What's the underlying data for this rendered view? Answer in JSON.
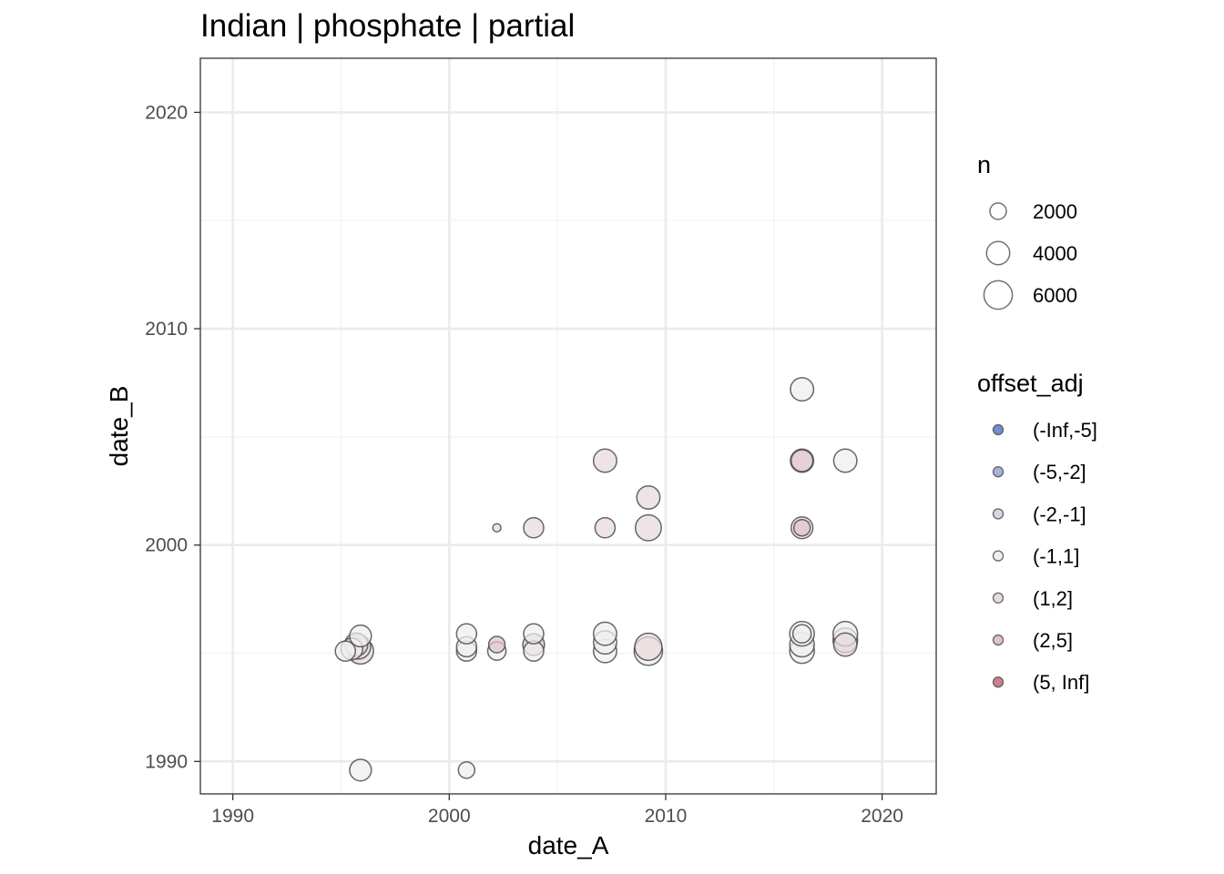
{
  "chart_data": {
    "type": "scatter",
    "title": "Indian | phosphate | partial",
    "xlabel": "date_A",
    "ylabel": "date_B",
    "xlim": [
      1988.5,
      2022.5
    ],
    "ylim": [
      1988.5,
      2022.5
    ],
    "x_ticks": [
      1990,
      2000,
      2010,
      2020
    ],
    "y_ticks": [
      1990,
      2000,
      2010,
      2020
    ],
    "x_tick_labels": [
      "1990",
      "2000",
      "2010",
      "2020"
    ],
    "y_tick_labels": [
      "1990",
      "2000",
      "2010",
      "2020"
    ],
    "grid": true,
    "size_legend": {
      "title": "n",
      "entries": [
        {
          "label": "2000",
          "n": 2000
        },
        {
          "label": "4000",
          "n": 4000
        },
        {
          "label": "6000",
          "n": 6000
        }
      ]
    },
    "color_legend": {
      "title": "offset_adj",
      "entries": [
        {
          "label": "(-Inf,-5]",
          "color": "#6f8fd1"
        },
        {
          "label": "(-5,-2]",
          "color": "#a8b3d8"
        },
        {
          "label": "(-2,-1]",
          "color": "#d5d8e6"
        },
        {
          "label": "(-1,1]",
          "color": "#eeeeee"
        },
        {
          "label": "(1,2]",
          "color": "#e8dadd"
        },
        {
          "label": "(2,5]",
          "color": "#dfc2c9"
        },
        {
          "label": "(5, Inf]",
          "color": "#c9808f"
        }
      ]
    },
    "points": [
      {
        "x": 1995.2,
        "y": 1995.1,
        "n": 3000,
        "group": "(-1,1]"
      },
      {
        "x": 1995.5,
        "y": 1995.2,
        "n": 3500,
        "group": "(-1,1]"
      },
      {
        "x": 1995.7,
        "y": 1995.4,
        "n": 4000,
        "group": "(1,2]"
      },
      {
        "x": 1995.8,
        "y": 1995.3,
        "n": 4500,
        "group": "(1,2]"
      },
      {
        "x": 1995.9,
        "y": 1995.1,
        "n": 5000,
        "group": "(1,2]"
      },
      {
        "x": 1995.9,
        "y": 1995.8,
        "n": 3500,
        "group": "(-1,1]"
      },
      {
        "x": 1995.9,
        "y": 1989.6,
        "n": 3500,
        "group": "(-1,1]"
      },
      {
        "x": 2000.8,
        "y": 1995.1,
        "n": 3000,
        "group": "(-1,1]"
      },
      {
        "x": 2000.8,
        "y": 1995.3,
        "n": 3000,
        "group": "(-1,1]"
      },
      {
        "x": 2000.8,
        "y": 1995.9,
        "n": 3000,
        "group": "(-1,1]"
      },
      {
        "x": 2000.8,
        "y": 1989.6,
        "n": 2000,
        "group": "(-1,1]"
      },
      {
        "x": 2002.2,
        "y": 2000.8,
        "n": 500,
        "group": "(1,2]"
      },
      {
        "x": 2002.2,
        "y": 1995.1,
        "n": 2500,
        "group": "(-1,1]"
      },
      {
        "x": 2002.2,
        "y": 1995.4,
        "n": 2000,
        "group": "(2,5]"
      },
      {
        "x": 2003.9,
        "y": 2000.8,
        "n": 3000,
        "group": "(1,2]"
      },
      {
        "x": 2003.9,
        "y": 1995.1,
        "n": 3000,
        "group": "(-1,1]"
      },
      {
        "x": 2003.9,
        "y": 1995.4,
        "n": 3500,
        "group": "(2,5]"
      },
      {
        "x": 2003.9,
        "y": 1995.9,
        "n": 3000,
        "group": "(-1,1]"
      },
      {
        "x": 2007.2,
        "y": 2003.9,
        "n": 4000,
        "group": "(1,2]"
      },
      {
        "x": 2007.2,
        "y": 2000.8,
        "n": 3000,
        "group": "(1,2]"
      },
      {
        "x": 2007.2,
        "y": 1995.1,
        "n": 4000,
        "group": "(-1,1]"
      },
      {
        "x": 2007.2,
        "y": 1995.5,
        "n": 4000,
        "group": "(-1,1]"
      },
      {
        "x": 2007.2,
        "y": 1995.9,
        "n": 4000,
        "group": "(-1,1]"
      },
      {
        "x": 2009.2,
        "y": 2002.2,
        "n": 4000,
        "group": "(1,2]"
      },
      {
        "x": 2009.2,
        "y": 2000.8,
        "n": 5000,
        "group": "(1,2]"
      },
      {
        "x": 2009.2,
        "y": 1995.1,
        "n": 6000,
        "group": "(-1,1]"
      },
      {
        "x": 2009.2,
        "y": 1995.3,
        "n": 5500,
        "group": "(1,2]"
      },
      {
        "x": 2016.3,
        "y": 2007.2,
        "n": 4000,
        "group": "(-1,1]"
      },
      {
        "x": 2016.3,
        "y": 2003.9,
        "n": 3500,
        "group": "(2,5]"
      },
      {
        "x": 2016.3,
        "y": 2003.9,
        "n": 4000,
        "group": "(-1,1]"
      },
      {
        "x": 2016.3,
        "y": 2000.8,
        "n": 2000,
        "group": "(2,5]"
      },
      {
        "x": 2016.3,
        "y": 2000.8,
        "n": 3500,
        "group": "(1,2]"
      },
      {
        "x": 2016.3,
        "y": 1995.1,
        "n": 4500,
        "group": "(-1,1]"
      },
      {
        "x": 2016.3,
        "y": 1995.4,
        "n": 4500,
        "group": "(-1,1]"
      },
      {
        "x": 2016.3,
        "y": 1995.9,
        "n": 4500,
        "group": "(-1,1]"
      },
      {
        "x": 2016.3,
        "y": 1995.9,
        "n": 2500,
        "group": "(-1,1]"
      },
      {
        "x": 2018.3,
        "y": 2003.9,
        "n": 4000,
        "group": "(-1,1]"
      },
      {
        "x": 2018.3,
        "y": 1995.4,
        "n": 4000,
        "group": "(1,2]"
      },
      {
        "x": 2018.3,
        "y": 1995.6,
        "n": 4500,
        "group": "(1,2]"
      },
      {
        "x": 2018.3,
        "y": 1995.9,
        "n": 4500,
        "group": "(-1,1]"
      }
    ]
  }
}
